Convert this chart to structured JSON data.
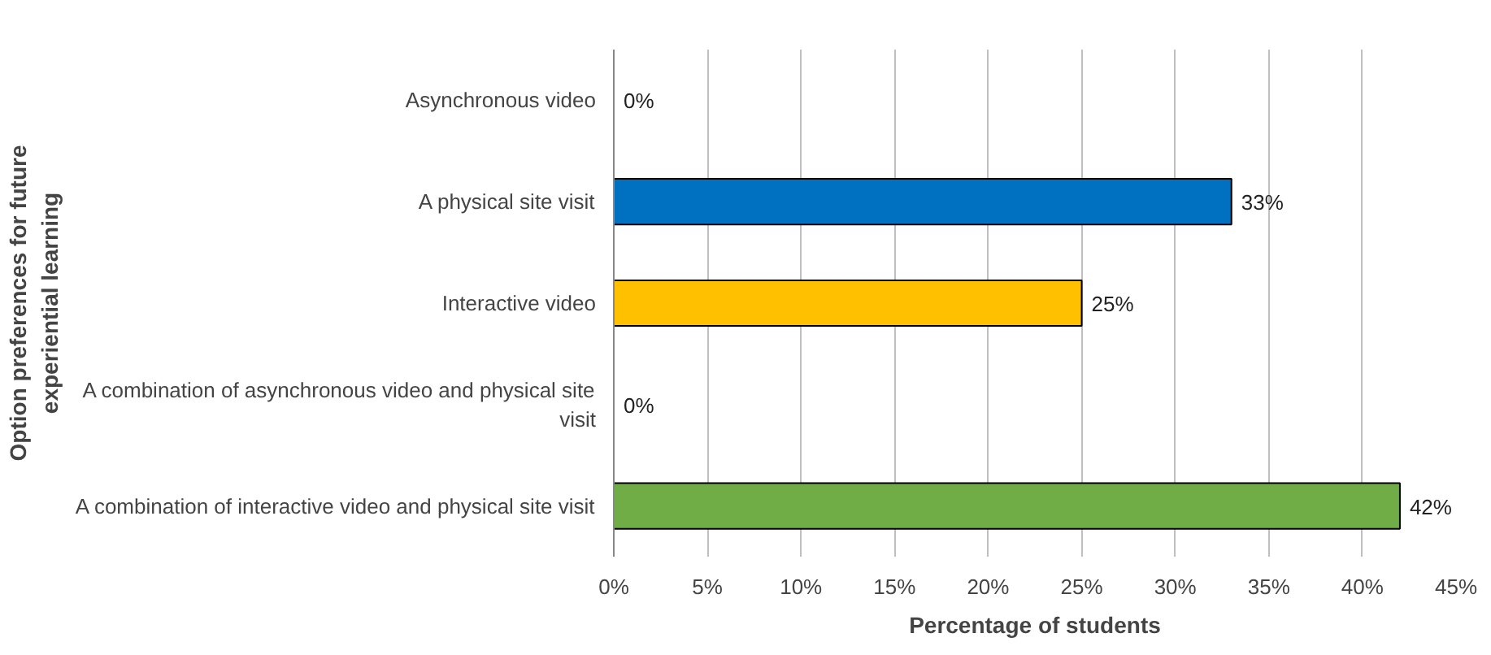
{
  "chart_data": {
    "type": "bar",
    "orientation": "horizontal",
    "xlabel": "Percentage of students",
    "ylabel": "Option preferences for future experiential learning",
    "categories": [
      "Asynchronous video",
      "A physical site visit",
      "Interactive video",
      "A combination of asynchronous video and physical site visit",
      "A combination of interactive video and physical site visit"
    ],
    "values": [
      0,
      33,
      25,
      0,
      42
    ],
    "colors": [
      "#0070c0",
      "#0070c0",
      "#ffc000",
      "#70ad47",
      "#70ad47"
    ],
    "value_labels": [
      "0%",
      "33%",
      "25%",
      "0%",
      "42%"
    ],
    "xlim": [
      0,
      45
    ],
    "xticks": [
      {
        "value": 0,
        "label": "0%"
      },
      {
        "value": 5,
        "label": "5%"
      },
      {
        "value": 10,
        "label": "10%"
      },
      {
        "value": 15,
        "label": "15%"
      },
      {
        "value": 20,
        "label": "20%"
      },
      {
        "value": 25,
        "label": "25%"
      },
      {
        "value": 30,
        "label": "30%"
      },
      {
        "value": 35,
        "label": "35%"
      },
      {
        "value": 40,
        "label": "40%"
      },
      {
        "value": 45,
        "label": "45%"
      }
    ],
    "grid": "x"
  }
}
